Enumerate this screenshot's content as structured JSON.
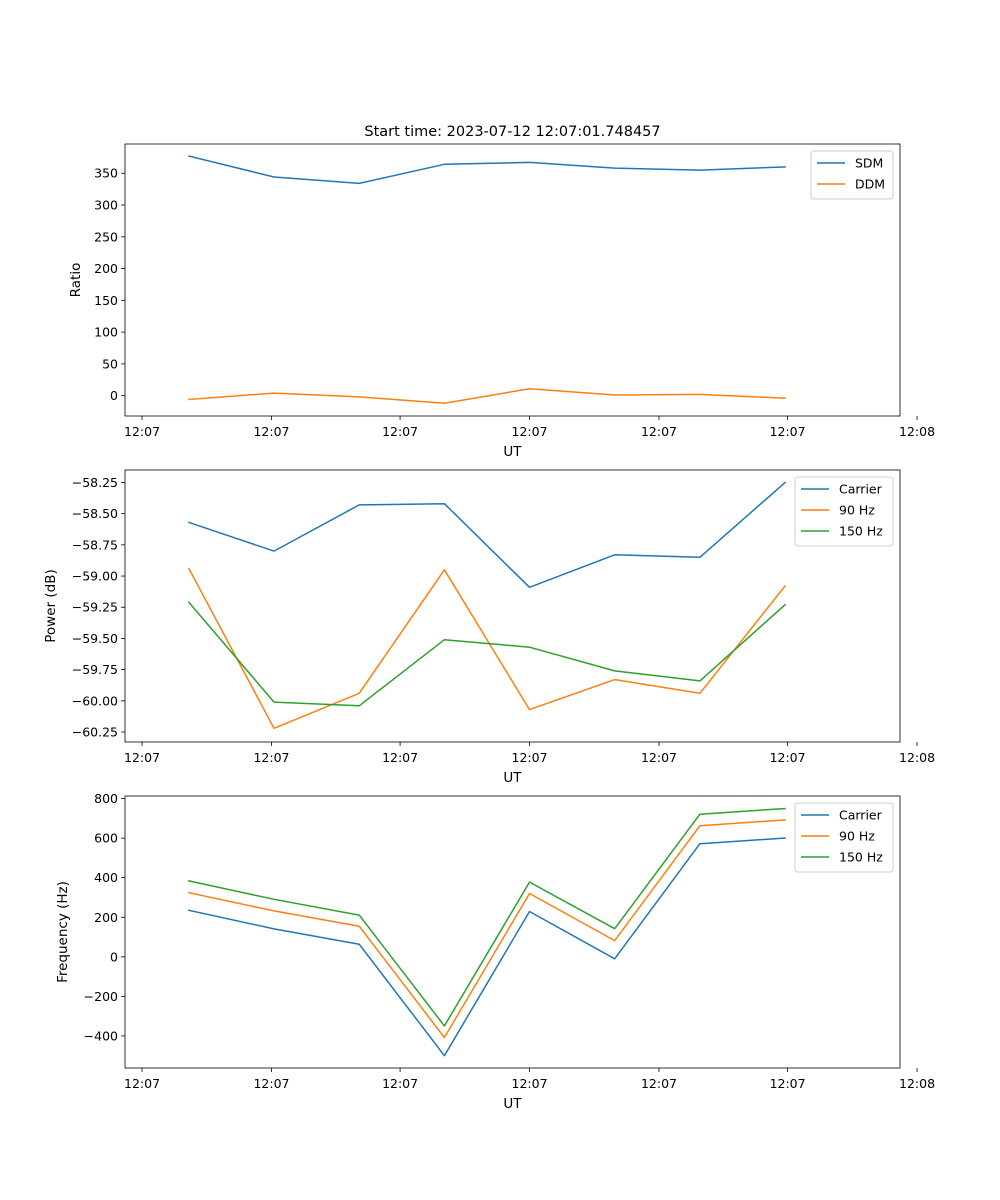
{
  "chart_data": [
    {
      "type": "line",
      "title": "Start time: 2023-07-12 12:07:01.748457",
      "xlabel": "UT",
      "ylabel": "Ratio",
      "x": [
        1,
        2,
        3,
        4,
        5,
        6,
        7,
        8
      ],
      "xlim": [
        0.25,
        9.35
      ],
      "xticks": [
        0.45,
        1.97,
        3.48,
        5.0,
        6.52,
        8.03,
        9.55
      ],
      "xtick_labels": [
        "12:07",
        "12:07",
        "12:07",
        "12:07",
        "12:07",
        "12:07",
        "12:08"
      ],
      "ylim": [
        -32,
        396
      ],
      "yticks": [
        0,
        50,
        100,
        150,
        200,
        250,
        300,
        350
      ],
      "ytick_labels": [
        "0",
        "50",
        "100",
        "150",
        "200",
        "250",
        "300",
        "350"
      ],
      "legend": "top-right",
      "series": [
        {
          "name": "SDM",
          "color": "#1f77b4",
          "values": [
            377,
            344,
            334,
            364,
            367,
            358,
            355,
            360
          ]
        },
        {
          "name": "DDM",
          "color": "#ff7f0e",
          "values": [
            -6,
            4,
            -2,
            -12,
            11,
            1,
            2,
            -4
          ]
        }
      ]
    },
    {
      "type": "line",
      "title": "",
      "xlabel": "UT",
      "ylabel": "Power (dB)",
      "x": [
        1,
        2,
        3,
        4,
        5,
        6,
        7,
        8
      ],
      "xlim": [
        0.25,
        9.35
      ],
      "xticks": [
        0.45,
        1.97,
        3.48,
        5.0,
        6.52,
        8.03,
        9.55
      ],
      "xtick_labels": [
        "12:07",
        "12:07",
        "12:07",
        "12:07",
        "12:07",
        "12:07",
        "12:08"
      ],
      "ylim": [
        -60.33,
        -58.15
      ],
      "yticks": [
        -60.25,
        -60.0,
        -59.75,
        -59.5,
        -59.25,
        -59.0,
        -58.75,
        -58.5,
        -58.25
      ],
      "ytick_labels": [
        "−60.25",
        "−60.00",
        "−59.75",
        "−59.50",
        "−59.25",
        "−59.00",
        "−58.75",
        "−58.50",
        "−58.25"
      ],
      "legend": "top-right",
      "series": [
        {
          "name": "Carrier",
          "color": "#1f77b4",
          "values": [
            -58.57,
            -58.8,
            -58.43,
            -58.42,
            -59.09,
            -58.83,
            -58.85,
            -58.25
          ]
        },
        {
          "name": "90 Hz",
          "color": "#ff7f0e",
          "values": [
            -58.94,
            -60.22,
            -59.94,
            -58.95,
            -60.07,
            -59.83,
            -59.94,
            -59.08
          ]
        },
        {
          "name": "150 Hz",
          "color": "#2ca02c",
          "values": [
            -59.21,
            -60.01,
            -60.04,
            -59.51,
            -59.57,
            -59.76,
            -59.84,
            -59.23
          ]
        }
      ]
    },
    {
      "type": "line",
      "title": "",
      "xlabel": "UT",
      "ylabel": "Frequency (Hz)",
      "x": [
        1,
        2,
        3,
        4,
        5,
        6,
        7,
        8
      ],
      "xlim": [
        0.25,
        9.35
      ],
      "xticks": [
        0.45,
        1.97,
        3.48,
        5.0,
        6.52,
        8.03,
        9.55
      ],
      "xtick_labels": [
        "12:07",
        "12:07",
        "12:07",
        "12:07",
        "12:07",
        "12:07",
        "12:08"
      ],
      "ylim": [
        -562,
        813
      ],
      "yticks": [
        -400,
        -200,
        0,
        200,
        400,
        600,
        800
      ],
      "ytick_labels": [
        "−400",
        "−200",
        "0",
        "200",
        "400",
        "600",
        "800"
      ],
      "legend": "top-right",
      "series": [
        {
          "name": "Carrier",
          "color": "#1f77b4",
          "values": [
            235,
            141,
            64,
            -500,
            229,
            -10,
            572,
            600
          ]
        },
        {
          "name": "90 Hz",
          "color": "#ff7f0e",
          "values": [
            324,
            232,
            155,
            -408,
            320,
            82,
            663,
            692
          ]
        },
        {
          "name": "150 Hz",
          "color": "#2ca02c",
          "values": [
            384,
            291,
            211,
            -349,
            378,
            142,
            721,
            750
          ]
        }
      ]
    }
  ]
}
